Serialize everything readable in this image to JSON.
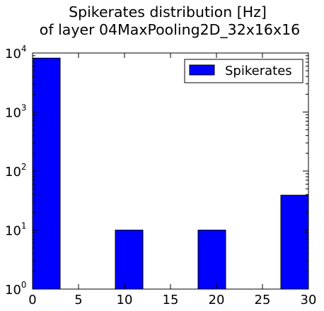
{
  "chart_data": {
    "type": "bar",
    "title": [
      "Spikerates distribution [Hz]",
      "of layer 04MaxPooling2D_32x16x16"
    ],
    "xlabel": "",
    "ylabel": "",
    "xlim": [
      0,
      30
    ],
    "ylim": [
      1,
      10000
    ],
    "y_scale": "log",
    "x_ticks": [
      "0",
      "5",
      "10",
      "15",
      "20",
      "25",
      "30"
    ],
    "y_ticks": [
      {
        "base": "10",
        "exp": "0"
      },
      {
        "base": "10",
        "exp": "1"
      },
      {
        "base": "10",
        "exp": "2"
      },
      {
        "base": "10",
        "exp": "3"
      },
      {
        "base": "10",
        "exp": "4"
      }
    ],
    "legend": {
      "placement": "top-right",
      "entries": [
        "Spikerates"
      ]
    },
    "bar_color": "#0000ff",
    "grid": false,
    "series": [
      {
        "name": "Spikerates",
        "bins": [
          {
            "x0": 0,
            "x1": 3,
            "value": 8192
          },
          {
            "x0": 9,
            "x1": 12,
            "value": 10
          },
          {
            "x0": 18,
            "x1": 21,
            "value": 10
          },
          {
            "x0": 27,
            "x1": 30,
            "value": 39
          }
        ]
      }
    ]
  }
}
